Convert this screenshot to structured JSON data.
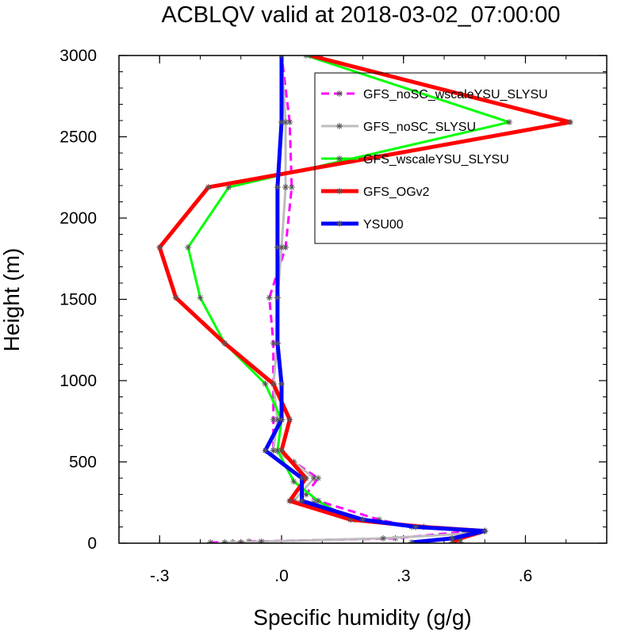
{
  "chart_data": {
    "type": "line",
    "title": "ACBLQV valid at 2018-03-02_07:00:00",
    "xlabel": "Specific humidity (g/g)",
    "ylabel": "Height (m)",
    "xlim": [
      -0.4,
      0.8
    ],
    "ylim": [
      0,
      3000
    ],
    "xticks": [
      -0.3,
      0.0,
      0.3,
      0.6
    ],
    "xtick_labels": [
      "-.3",
      ".0",
      ".3",
      ".6"
    ],
    "yticks": [
      0,
      500,
      1000,
      1500,
      2000,
      2500,
      3000
    ],
    "ytick_labels": [
      "0",
      "500",
      "1000",
      "1500",
      "2000",
      "2500",
      "3000"
    ],
    "legend_position": "top-right",
    "series": [
      {
        "name": "GFS_noSC_wscaleYSU_SLYSU",
        "color": "#ff00ff",
        "width": 3,
        "dash": "10,6",
        "points": [
          [
            -0.175,
            5
          ],
          [
            -0.12,
            5
          ],
          [
            -0.08,
            10
          ],
          [
            0.28,
            30
          ],
          [
            0.45,
            70
          ],
          [
            0.5,
            75
          ],
          [
            0.32,
            100
          ],
          [
            0.24,
            145
          ],
          [
            0.09,
            260
          ],
          [
            0.06,
            300
          ],
          [
            0.09,
            400
          ],
          [
            0.03,
            500
          ],
          [
            -0.02,
            570
          ],
          [
            -0.02,
            760
          ],
          [
            -0.02,
            980
          ],
          [
            -0.02,
            1230
          ],
          [
            -0.03,
            1510
          ],
          [
            0.01,
            1820
          ],
          [
            0.025,
            2190
          ],
          [
            0.02,
            2590
          ],
          [
            0.0,
            3000
          ]
        ]
      },
      {
        "name": "GFS_noSC_SLYSU",
        "color": "#bdbdbd",
        "width": 3,
        "dash": "",
        "points": [
          [
            -0.14,
            5
          ],
          [
            -0.1,
            5
          ],
          [
            -0.05,
            10
          ],
          [
            0.25,
            30
          ],
          [
            0.46,
            60
          ],
          [
            0.5,
            75
          ],
          [
            0.33,
            100
          ],
          [
            0.18,
            145
          ],
          [
            0.08,
            250
          ],
          [
            0.03,
            260
          ],
          [
            0.08,
            400
          ],
          [
            0.03,
            500
          ],
          [
            -0.02,
            570
          ],
          [
            -0.01,
            760
          ],
          [
            -0.02,
            980
          ],
          [
            -0.01,
            1230
          ],
          [
            -0.01,
            1510
          ],
          [
            0.0,
            1820
          ],
          [
            0.01,
            2190
          ],
          [
            0.01,
            2590
          ],
          [
            0.0,
            3000
          ]
        ]
      },
      {
        "name": "GFS_wscaleYSU_SLYSU",
        "color": "#00ff00",
        "width": 3,
        "dash": "",
        "points": [
          [
            0.44,
            5
          ],
          [
            0.44,
            30
          ],
          [
            0.5,
            75
          ],
          [
            0.35,
            100
          ],
          [
            0.17,
            145
          ],
          [
            0.09,
            260
          ],
          [
            0.03,
            380
          ],
          [
            -0.01,
            570
          ],
          [
            0.0,
            760
          ],
          [
            -0.04,
            980
          ],
          [
            -0.14,
            1230
          ],
          [
            -0.2,
            1510
          ],
          [
            -0.23,
            1820
          ],
          [
            -0.13,
            2190
          ],
          [
            0.56,
            2590
          ],
          [
            0.06,
            3000
          ]
        ]
      },
      {
        "name": "GFS_OGv2",
        "color": "#ff0000",
        "width": 5,
        "dash": "",
        "points": [
          [
            0.42,
            5
          ],
          [
            0.44,
            30
          ],
          [
            0.5,
            75
          ],
          [
            0.35,
            100
          ],
          [
            0.17,
            145
          ],
          [
            0.02,
            260
          ],
          [
            0.06,
            400
          ],
          [
            0.0,
            570
          ],
          [
            0.02,
            760
          ],
          [
            -0.02,
            980
          ],
          [
            -0.14,
            1230
          ],
          [
            -0.26,
            1510
          ],
          [
            -0.3,
            1820
          ],
          [
            -0.18,
            2190
          ],
          [
            0.71,
            2590
          ],
          [
            0.07,
            3000
          ]
        ]
      },
      {
        "name": "YSU00",
        "color": "#0000ff",
        "width": 5,
        "dash": "",
        "points": [
          [
            0.32,
            5
          ],
          [
            0.42,
            30
          ],
          [
            0.5,
            75
          ],
          [
            0.33,
            100
          ],
          [
            0.2,
            145
          ],
          [
            0.05,
            260
          ],
          [
            0.05,
            400
          ],
          [
            -0.04,
            570
          ],
          [
            0.0,
            760
          ],
          [
            0.0,
            980
          ],
          [
            -0.01,
            1230
          ],
          [
            -0.01,
            1510
          ],
          [
            -0.01,
            1820
          ],
          [
            -0.01,
            2190
          ],
          [
            0.0,
            2590
          ],
          [
            0.0,
            3000
          ]
        ]
      }
    ]
  }
}
